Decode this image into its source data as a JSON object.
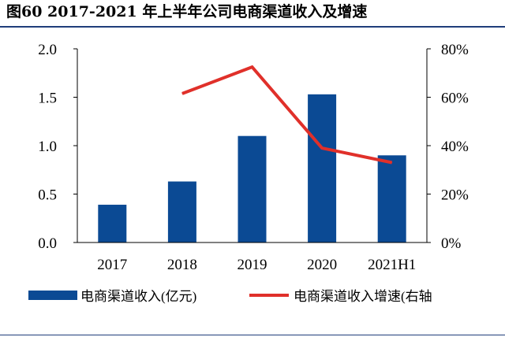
{
  "figure": {
    "title": "图60  2017-2021 年上半年公司电商渠道收入及增速"
  },
  "colors": {
    "bar": "#0b4a94",
    "line": "#e0302a",
    "rule": "#1f3d7a",
    "axis": "#000000"
  },
  "chart_data": {
    "type": "bar",
    "title": "图60  2017-2021 年上半年公司电商渠道收入及增速",
    "categories": [
      "2017",
      "2018",
      "2019",
      "2020",
      "2021H1"
    ],
    "series": [
      {
        "name": "电商渠道收入(亿元)",
        "type": "bar",
        "axis": "left",
        "values": [
          0.39,
          0.63,
          1.1,
          1.53,
          0.9
        ]
      },
      {
        "name": "电商渠道收入增速(右轴",
        "type": "line",
        "axis": "right",
        "values": [
          null,
          61.5,
          72.5,
          39.0,
          33.0
        ]
      }
    ],
    "y_left": {
      "min": 0,
      "max": 2.0,
      "ticks": [
        "0.0",
        "0.5",
        "1.0",
        "1.5",
        "2.0"
      ]
    },
    "y_right": {
      "min": 0,
      "max": 80,
      "ticks": [
        "0%",
        "20%",
        "40%",
        "60%",
        "80%"
      ]
    },
    "grid": false,
    "legend_position": "bottom"
  }
}
